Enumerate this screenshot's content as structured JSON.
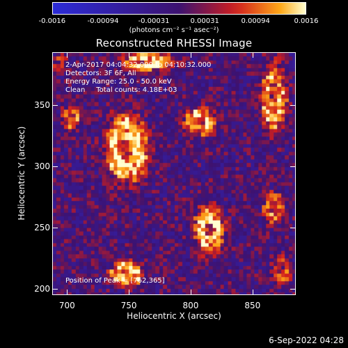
{
  "colorbar": {
    "ticks": [
      "-0.0016",
      "-0.00094",
      "-0.00031",
      "0.00031",
      "0.00094",
      "0.0016"
    ],
    "units": "(photons cm⁻² s⁻¹ asec⁻²)",
    "range": [
      -0.0016,
      0.0016
    ]
  },
  "chart_data": {
    "type": "heatmap",
    "title": "Reconstructed RHESSI Image",
    "xlabel": "Heliocentric X (arcsec)",
    "ylabel": "Heliocentric Y (arcsec)",
    "xlim": [
      688,
      885
    ],
    "ylim": [
      195,
      393
    ],
    "xticks": [
      700,
      750,
      800,
      850
    ],
    "yticks": [
      200,
      250,
      300,
      350
    ],
    "colormap": "hot-on-blue",
    "colors": {
      "negative": "#2b2bd6",
      "zero": "#3d1270",
      "mid": "#d01e1e",
      "high": "#ffa818",
      "max": "#ffffd0"
    },
    "sources": [
      {
        "x": 748,
        "y": 315,
        "rx": 22,
        "ry": 34,
        "peak": 0.0016,
        "shape": "ring"
      },
      {
        "x": 815,
        "y": 248,
        "rx": 15,
        "ry": 24,
        "peak": 0.0016,
        "shape": "ring"
      },
      {
        "x": 808,
        "y": 336,
        "rx": 16,
        "ry": 14,
        "peak": 0.0013,
        "shape": "ring"
      },
      {
        "x": 748,
        "y": 212,
        "rx": 17,
        "ry": 13,
        "peak": 0.0016,
        "shape": "ring"
      },
      {
        "x": 765,
        "y": 386,
        "rx": 26,
        "ry": 10,
        "peak": 0.0014,
        "shape": "ring"
      },
      {
        "x": 868,
        "y": 357,
        "rx": 13,
        "ry": 36,
        "peak": 0.0013,
        "shape": "ring"
      },
      {
        "x": 868,
        "y": 265,
        "rx": 11,
        "ry": 17,
        "peak": 0.0011,
        "shape": "ring"
      },
      {
        "x": 703,
        "y": 340,
        "rx": 10,
        "ry": 13,
        "peak": 0.001,
        "shape": "ring"
      },
      {
        "x": 694,
        "y": 385,
        "rx": 7,
        "ry": 9,
        "peak": 0.0008,
        "shape": "ring"
      },
      {
        "x": 875,
        "y": 215,
        "rx": 10,
        "ry": 13,
        "peak": 0.0009,
        "shape": "ring"
      }
    ]
  },
  "annotation": {
    "time": "2-Apr-2017 04:04:32.000 to 04:10:32.000",
    "detectors": "Detectors: 3F 6F, All",
    "energy": "Energy Range: 25.0 - 50.0 keV",
    "method": "Clean     Total counts: 4.18E+03",
    "position": "Position of Peak = [762,365]"
  },
  "timestamp": "6-Sep-2022 04:28"
}
